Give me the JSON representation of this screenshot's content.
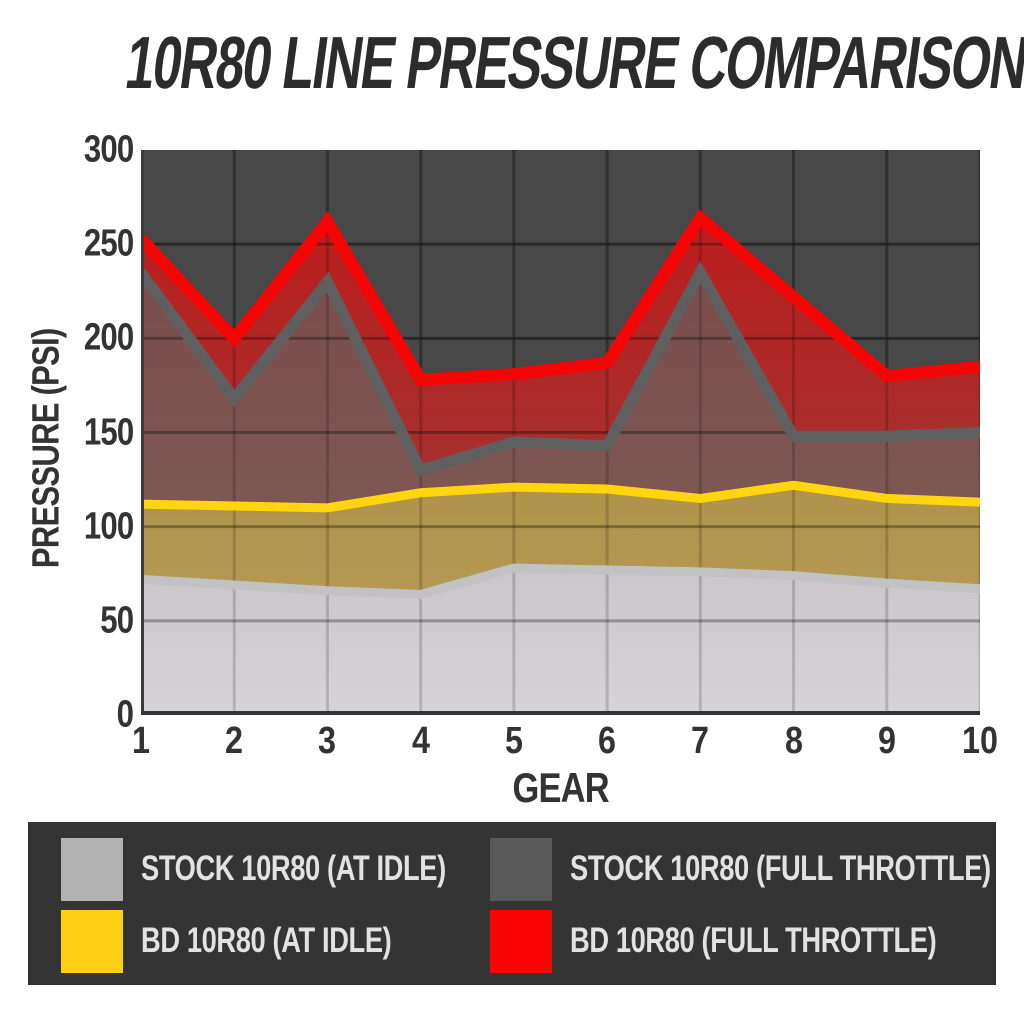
{
  "chart_data": {
    "type": "area",
    "title": "10R80 LINE PRESSURE COMPARISON",
    "xlabel": "GEAR",
    "ylabel": "PRESSURE (PSI)",
    "x": [
      1,
      2,
      3,
      4,
      5,
      6,
      7,
      8,
      9,
      10
    ],
    "ylim": [
      0,
      300
    ],
    "yticks": [
      0,
      50,
      100,
      150,
      200,
      250,
      300
    ],
    "grid": true,
    "legend_position": "bottom",
    "plot_bg": "#484848",
    "grid_color": "#3a3a3a",
    "axis_text_color": "#333333",
    "title_color": "#2c2c2c",
    "series": [
      {
        "id": "stock_idle",
        "name": "STOCK 10R80 (AT IDLE)",
        "line_color": "#c2c2c4",
        "legend_color": "#b3b3b3",
        "fill_top": "#a89d9c",
        "fill_bottom": "#d6d4d9",
        "line_width": 9,
        "values": [
          72,
          69,
          66,
          64,
          78,
          77,
          76,
          74,
          70,
          67
        ]
      },
      {
        "id": "bd_idle",
        "name": "BD 10R80 (AT IDLE)",
        "line_color": "#ffd60e",
        "legend_color": "#fccf12",
        "fill_top": "#a5812b",
        "fill_bottom": "#b89f5f",
        "line_width": 9,
        "values": [
          112,
          111,
          110,
          118,
          121,
          120,
          115,
          122,
          115,
          113
        ]
      },
      {
        "id": "stock_ft",
        "name": "STOCK 10R80 (FULL THROTTLE)",
        "line_color": "#5f5f5f",
        "legend_color": "#595959",
        "fill_top": "#774747",
        "fill_bottom": "#82605a",
        "line_width": 11,
        "values": [
          235,
          168,
          230,
          130,
          145,
          143,
          235,
          148,
          148,
          150
        ]
      },
      {
        "id": "bd_ft",
        "name": "BD 10R80 (FULL THROTTLE)",
        "line_color": "#f50505",
        "legend_color": "#fb0404",
        "fill_top": "#c21818",
        "fill_bottom": "#8f4440",
        "line_width": 12,
        "values": [
          253,
          200,
          262,
          178,
          181,
          187,
          264,
          222,
          180,
          185
        ]
      }
    ]
  },
  "legend": {
    "background": "#343434",
    "text_color": "#e2e2e2"
  }
}
